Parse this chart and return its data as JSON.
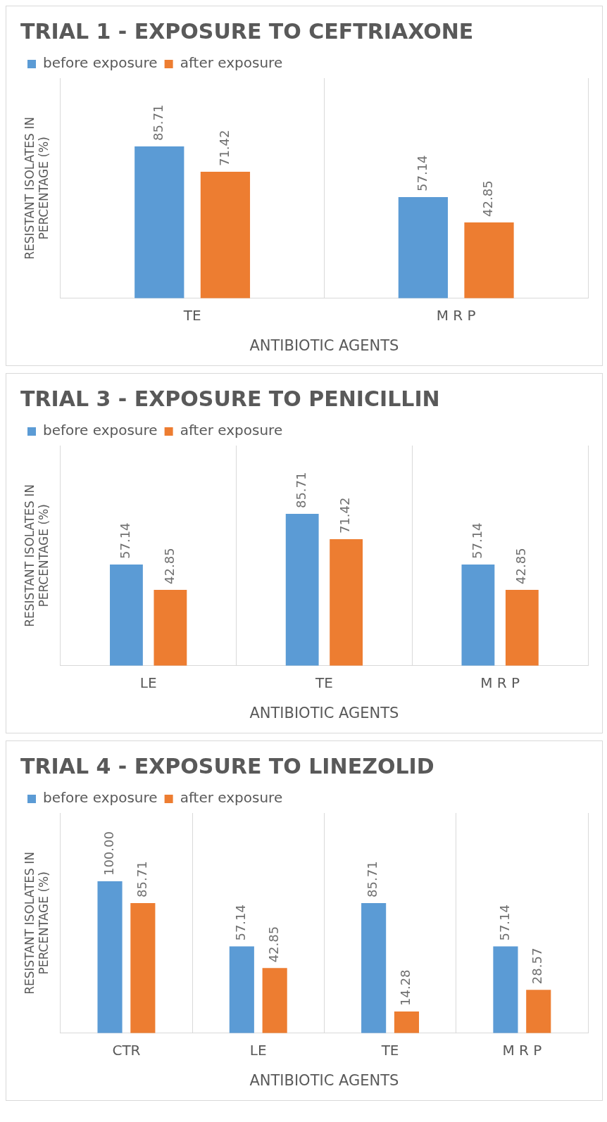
{
  "chart_data": [
    {
      "type": "bar",
      "title": "TRIAL 1 - EXPOSURE TO CEFTRIAXONE",
      "xlabel": "ANTIBIOTIC AGENTS",
      "ylabel": "RESISTANT ISOLATES IN PERCENTAGE (%)",
      "categories": [
        "TE",
        "M R P"
      ],
      "series": [
        {
          "name": "before exposure",
          "color": "#5b9bd5",
          "values": [
            85.71,
            57.14
          ],
          "value_labels": [
            "85.71",
            "57.14"
          ]
        },
        {
          "name": "after exposure",
          "color": "#ed7d31",
          "values": [
            71.42,
            42.85
          ],
          "value_labels": [
            "71.42",
            "42.85"
          ]
        }
      ],
      "legend": "top",
      "grid": "x",
      "tick_labels": "x"
    },
    {
      "type": "bar",
      "title": "TRIAL 3 - EXPOSURE TO PENICILLIN",
      "xlabel": "ANTIBIOTIC AGENTS",
      "ylabel": "RESISTANT ISOLATES IN PERCENTAGE (%)",
      "categories": [
        "LE",
        "TE",
        "M R P"
      ],
      "series": [
        {
          "name": "before exposure",
          "color": "#5b9bd5",
          "values": [
            57.14,
            85.71,
            57.14
          ],
          "value_labels": [
            "57.14",
            "85.71",
            "57.14"
          ]
        },
        {
          "name": "after exposure",
          "color": "#ed7d31",
          "values": [
            42.85,
            71.42,
            42.85
          ],
          "value_labels": [
            "42.85",
            "71.42",
            "42.85"
          ]
        }
      ],
      "legend": "top",
      "grid": "x",
      "tick_labels": "x"
    },
    {
      "type": "bar",
      "title": "TRIAL 4 - EXPOSURE TO LINEZOLID",
      "xlabel": "ANTIBIOTIC AGENTS",
      "ylabel": "RESISTANT ISOLATES IN PERCENTAGE (%)",
      "categories": [
        "CTR",
        "LE",
        "TE",
        "M R P"
      ],
      "series": [
        {
          "name": "before exposure",
          "color": "#5b9bd5",
          "values": [
            100,
            57.14,
            85.71,
            57.14
          ],
          "value_labels": [
            "100.00",
            "57.14",
            "85.71",
            "57.14"
          ]
        },
        {
          "name": "after exposure",
          "color": "#ed7d31",
          "values": [
            85.71,
            42.85,
            14.28,
            28.57
          ],
          "value_labels": [
            "85.71",
            "42.85",
            "14.28",
            "28.57"
          ]
        }
      ],
      "legend": "top",
      "grid": "x",
      "tick_labels": "x"
    }
  ]
}
